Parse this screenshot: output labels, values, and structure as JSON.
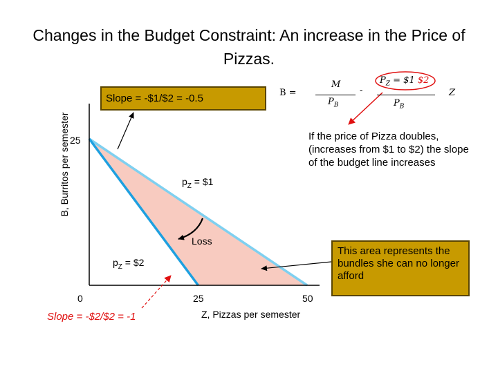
{
  "title": "Changes in the Budget Constraint: An increase in the Price of Pizzas.",
  "slope_box": "Slope = -$1/$2 = -0.5",
  "red_slope": "Slope = -$2/$2 = -1",
  "area_box": "This area represents the bundles she can no longer afford",
  "note": "If the price of Pizza doubles, (increases from $1 to $2) the slope of the budget line increases",
  "equation": {
    "lhs": "B =",
    "numer": "M",
    "denom": "P",
    "denom_sub": "B",
    "minus": "-",
    "pz_label": "P",
    "pz_sub": "Z",
    "pz_old": "= $1",
    "pz_new": "$2",
    "denom2": "P",
    "denom2_sub": "B",
    "var": "Z"
  },
  "labels": {
    "pz1_prefix": "p",
    "pz1_sub": "Z",
    "pz1_suffix": " = $1",
    "pz2_prefix": "p",
    "pz2_sub": "Z",
    "pz2_suffix": " = $2",
    "loss": "Loss"
  },
  "colors": {
    "old_line": "#7fd0f0",
    "new_line": "#1ea0e0",
    "loss_area": "#f8cbc0",
    "box_fill": "#c79a00",
    "red": "#e01010"
  },
  "chart_data": {
    "type": "line",
    "xlabel": "Z, Pizzas per semester",
    "ylabel": "B, Burritos per semester",
    "xlim": [
      0,
      50
    ],
    "ylim": [
      0,
      25
    ],
    "x_ticks": [
      "0",
      "25",
      "50"
    ],
    "y_ticks": [
      "25"
    ],
    "series": [
      {
        "name": "pZ = $1",
        "x": [
          0,
          50
        ],
        "y": [
          25,
          0
        ]
      },
      {
        "name": "pZ = $2",
        "x": [
          0,
          25
        ],
        "y": [
          25,
          0
        ]
      }
    ],
    "shaded_region": "Loss"
  }
}
